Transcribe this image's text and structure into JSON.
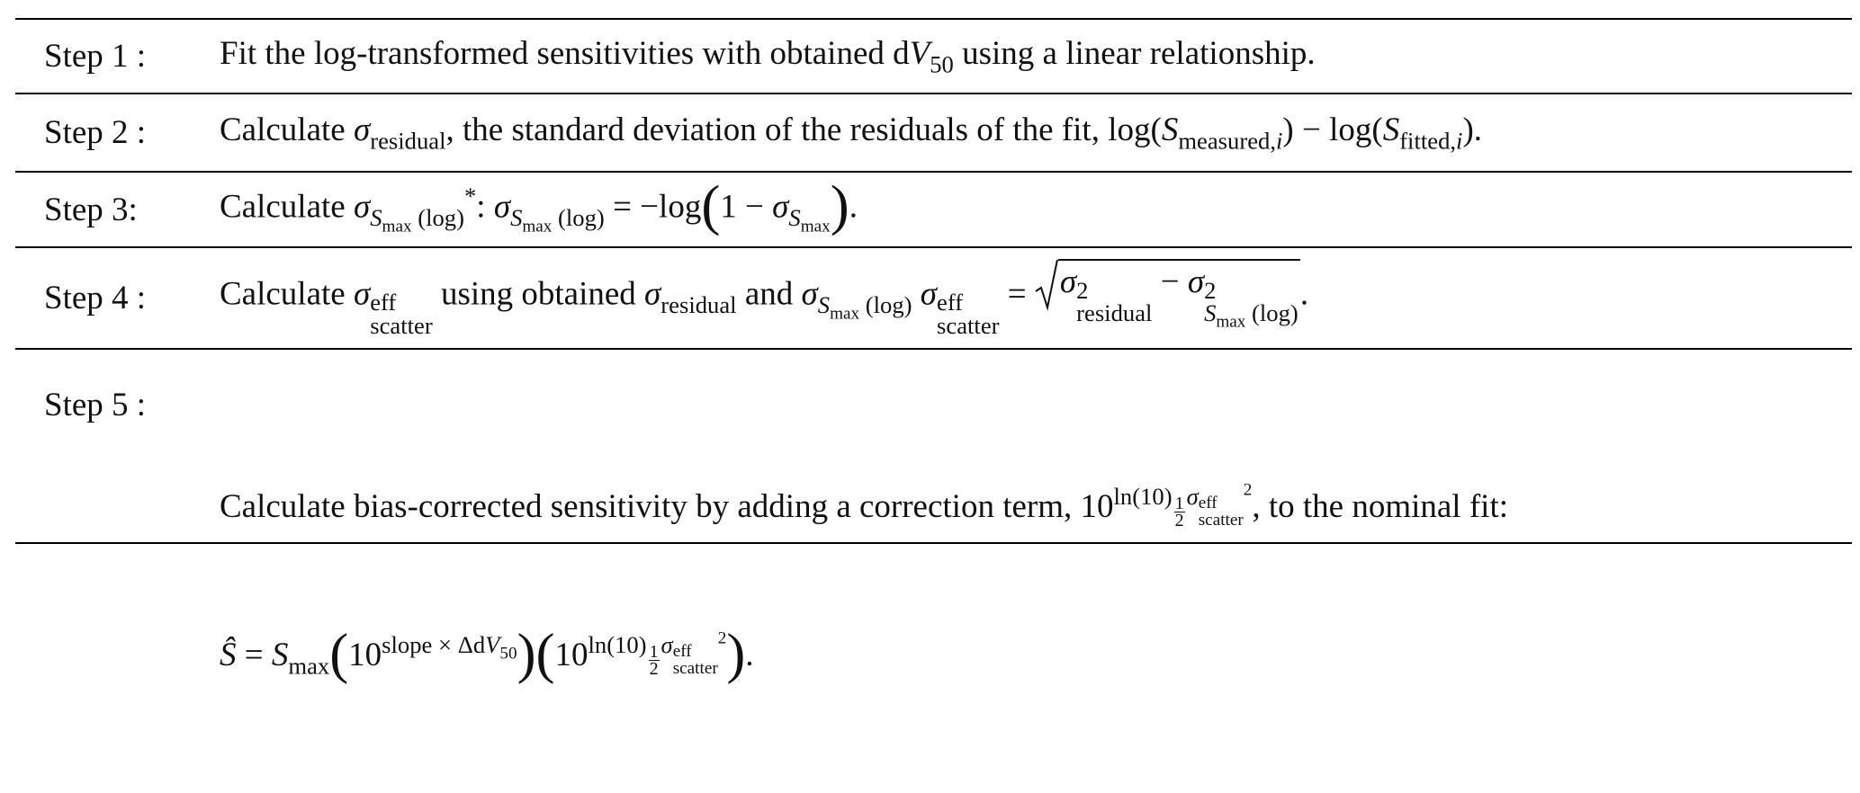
{
  "rows": [
    {
      "label": "Step 1 :",
      "lines": [
        [
          "Fit the log-transformed sensitivities with obtained d",
          "V",
          "50",
          " using a linear relationship."
        ]
      ]
    },
    {
      "label": "Step 2 :",
      "lines": [
        [
          "Calculate ",
          "σ",
          "residual",
          ", the standard deviation of the residuals of the fit, log(",
          "S",
          "measured,",
          "i",
          ") − log(",
          "S",
          "fitted,",
          "i",
          ")."
        ]
      ]
    },
    {
      "label": "Step 3:",
      "lines": [
        [
          "Calculate ",
          "σ",
          "S",
          "max",
          " (log)",
          "*",
          ": ",
          "σ",
          "S",
          "max",
          " (log)",
          " = −log",
          "(",
          "1 − ",
          "σ",
          "S",
          "max",
          ")",
          "."
        ]
      ]
    },
    {
      "label": "Step 4 :",
      "lines": [
        [
          "Calculate ",
          "σ",
          "eff",
          "scatter",
          " using obtained ",
          "σ",
          "residual",
          " and ",
          "σ",
          "S",
          "max",
          " (log)",
          " ",
          "σ",
          "eff",
          "scatter",
          " = ",
          "σ",
          "2",
          "residual",
          " − ",
          "σ",
          "2",
          "S",
          "max",
          " (log)",
          "."
        ]
      ]
    },
    {
      "label": "Step 5 :",
      "lines": [
        [
          "Calculate bias-corrected sensitivity by adding a correction term, ",
          "10",
          "ln(10)",
          "1",
          "2",
          "σ",
          "eff",
          "scatter",
          "2",
          ", to the nominal fit:"
        ],
        [
          "Ŝ",
          " = ",
          "S",
          "max",
          "(",
          "10",
          "slope × Δd",
          "V",
          "50",
          ")",
          "(",
          "10",
          "ln(10)",
          "1",
          "2",
          "σ",
          "eff",
          "scatter",
          "2",
          ")",
          "."
        ]
      ]
    }
  ]
}
